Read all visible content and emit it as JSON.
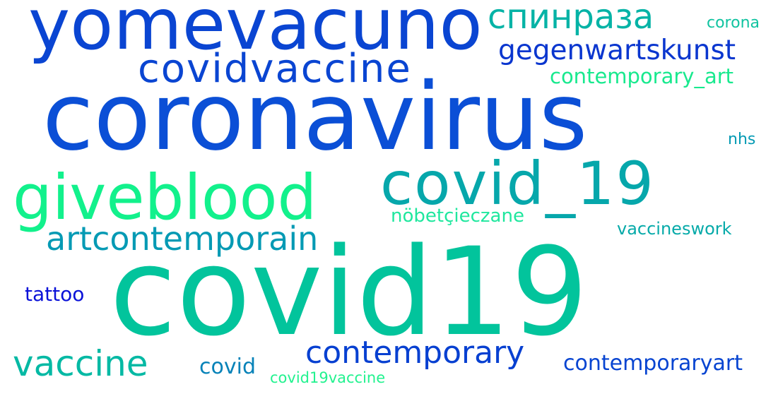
{
  "words": [
    {
      "text": "yomevacuno",
      "color": "#0a45d2"
    },
    {
      "text": "спинраза",
      "color": "#05b3a6"
    },
    {
      "text": "corona",
      "color": "#10c3a0"
    },
    {
      "text": "gegenwartskunst",
      "color": "#0a36cf"
    },
    {
      "text": "covidvaccine",
      "color": "#0a45d2"
    },
    {
      "text": "contemporary_art",
      "color": "#18e98e"
    },
    {
      "text": "coronavirus",
      "color": "#0b4fd6"
    },
    {
      "text": "nhs",
      "color": "#049ab4"
    },
    {
      "text": "covid_19",
      "color": "#06a7ab"
    },
    {
      "text": "giveblood",
      "color": "#12f18c"
    },
    {
      "text": "artcontemporain",
      "color": "#049ab4"
    },
    {
      "text": "nöbetçieczane",
      "color": "#1fe79e"
    },
    {
      "text": "vaccineswork",
      "color": "#06aaa9"
    },
    {
      "text": "covid19",
      "color": "#02c49c"
    },
    {
      "text": "tattoo",
      "color": "#0a12d8"
    },
    {
      "text": "vaccine",
      "color": "#04b9a4"
    },
    {
      "text": "contemporary",
      "color": "#0740d1"
    },
    {
      "text": "covid",
      "color": "#0682b8"
    },
    {
      "text": "contemporaryart",
      "color": "#0744d1"
    },
    {
      "text": "covid19vaccine",
      "color": "#22f28f"
    }
  ]
}
